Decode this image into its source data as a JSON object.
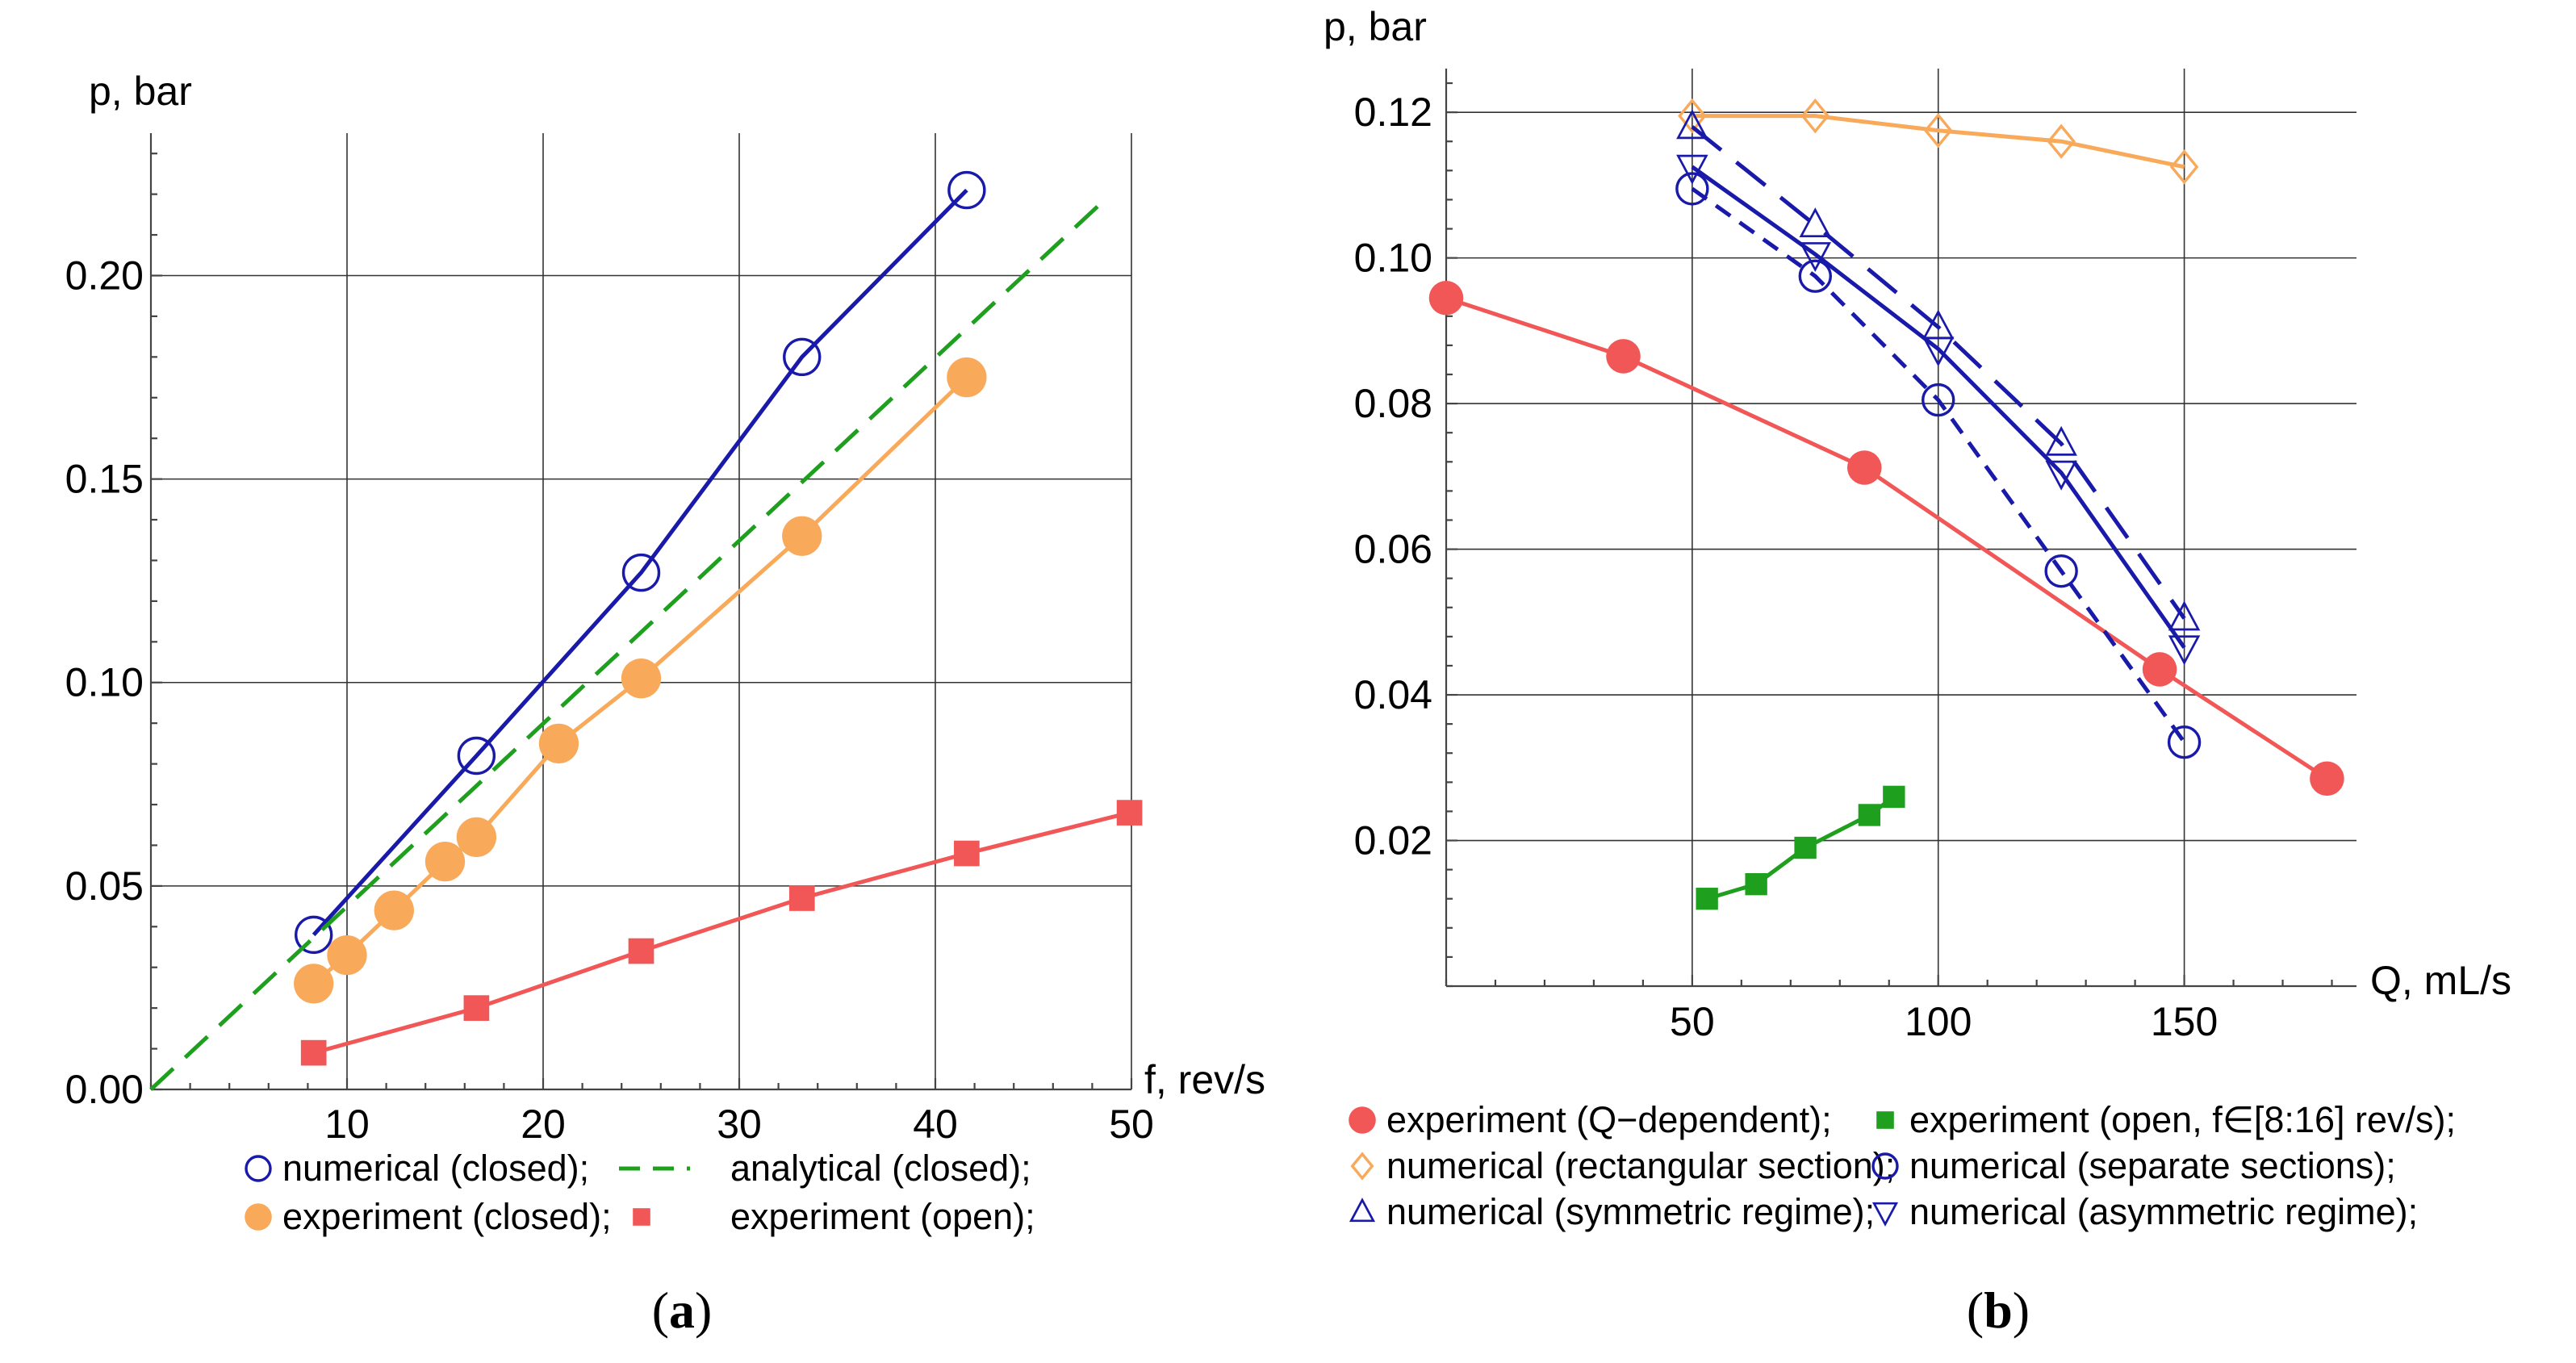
{
  "chart_data": [
    {
      "type": "line",
      "panel_label": "a",
      "xlabel": "f, rev/s",
      "ylabel": "p, bar",
      "xlim": [
        0,
        50
      ],
      "ylim": [
        0,
        0.235
      ],
      "xticks": [
        10,
        20,
        30,
        40,
        50
      ],
      "yticks": [
        0.0,
        0.05,
        0.1,
        0.15,
        0.2
      ],
      "xtick_labels": [
        "10",
        "20",
        "30",
        "40",
        "50"
      ],
      "ytick_labels": [
        "0.00",
        "0.05",
        "0.10",
        "0.15",
        "0.20"
      ],
      "grid": true,
      "series": [
        {
          "name": "numerical (closed)",
          "color": "#1a1aaa",
          "marker": "circle-open",
          "line": "solid",
          "x": [
            8.3,
            16.6,
            25.0,
            33.2,
            41.6
          ],
          "y": [
            0.038,
            0.082,
            0.127,
            0.18,
            0.221
          ]
        },
        {
          "name": "analytical (closed)",
          "color": "#1ea01e",
          "marker": "none",
          "line": "dashed",
          "x": [
            0,
            48.5
          ],
          "y": [
            0,
            0.218
          ]
        },
        {
          "name": "experiment (closed)",
          "color": "#f8a95a",
          "marker": "circle-filled",
          "line": "solid",
          "x": [
            8.3,
            10.0,
            12.4,
            15.0,
            16.6,
            20.8,
            25.0,
            33.2,
            41.6
          ],
          "y": [
            0.026,
            0.033,
            0.044,
            0.056,
            0.062,
            0.085,
            0.101,
            0.136,
            0.175
          ]
        },
        {
          "name": "experiment (open)",
          "color": "#f25757",
          "marker": "square-filled",
          "line": "solid",
          "x": [
            8.3,
            16.6,
            25.0,
            33.2,
            41.6,
            49.9
          ],
          "y": [
            0.009,
            0.02,
            0.034,
            0.047,
            0.058,
            0.068
          ]
        }
      ],
      "legend_rows": [
        [
          "numerical (closed);",
          "analytical (closed);"
        ],
        [
          "experiment (closed);",
          "experiment (open);"
        ]
      ]
    },
    {
      "type": "line",
      "panel_label": "b",
      "xlabel": "Q, mL/s",
      "ylabel": "p, bar",
      "xlim": [
        0,
        185
      ],
      "ylim": [
        0,
        0.126
      ],
      "xticks": [
        50,
        100,
        150
      ],
      "yticks": [
        0.02,
        0.04,
        0.06,
        0.08,
        0.1,
        0.12
      ],
      "xtick_labels": [
        "50",
        "100",
        "150"
      ],
      "ytick_labels": [
        "0.02",
        "0.04",
        "0.06",
        "0.08",
        "0.10",
        "0.12"
      ],
      "grid": true,
      "series": [
        {
          "name": "experiment (Q−dependent)",
          "color": "#f25757",
          "marker": "circle-filled",
          "line": "solid",
          "x": [
            0,
            36,
            85,
            145,
            179
          ],
          "y": [
            0.0945,
            0.0865,
            0.0712,
            0.0435,
            0.0285
          ]
        },
        {
          "name": "experiment (open, f∈[8:16] rev/s)",
          "color": "#1ea01e",
          "marker": "square-filled",
          "line": "solid",
          "x": [
            53,
            63,
            73,
            86,
            91
          ],
          "y": [
            0.012,
            0.014,
            0.019,
            0.0235,
            0.026
          ]
        },
        {
          "name": "numerical (rectangular section)",
          "color": "#f8a95a",
          "marker": "diamond-open",
          "line": "solid",
          "x": [
            50,
            75,
            100,
            125,
            150
          ],
          "y": [
            0.1195,
            0.1195,
            0.1175,
            0.116,
            0.1125
          ]
        },
        {
          "name": "numerical (separate sections)",
          "color": "#1a1aaa",
          "marker": "circle-open",
          "line": "short-dashed",
          "x": [
            50,
            75,
            100,
            125,
            150
          ],
          "y": [
            0.1095,
            0.0975,
            0.0805,
            0.057,
            0.0335
          ]
        },
        {
          "name": "numerical (symmetric regime)",
          "color": "#1a1aaa",
          "marker": "triangle-up-open",
          "line": "long-dashed",
          "x": [
            50,
            75,
            100,
            125,
            150
          ],
          "y": [
            0.118,
            0.1045,
            0.0905,
            0.0745,
            0.0505
          ]
        },
        {
          "name": "numerical (asymmetric regime)",
          "color": "#1a1aaa",
          "marker": "triangle-down-open",
          "line": "solid",
          "x": [
            50,
            75,
            100,
            125,
            150
          ],
          "y": [
            0.1125,
            0.1005,
            0.0875,
            0.0705,
            0.0465
          ]
        }
      ],
      "legend_rows": [
        [
          "experiment (Q−dependent);",
          "experiment (open, f∈[8:16] rev/s);"
        ],
        [
          "numerical (rectangular section);",
          "numerical (separate sections);"
        ],
        [
          "numerical (symmetric regime);",
          "numerical (asymmetric regime);"
        ]
      ]
    }
  ]
}
